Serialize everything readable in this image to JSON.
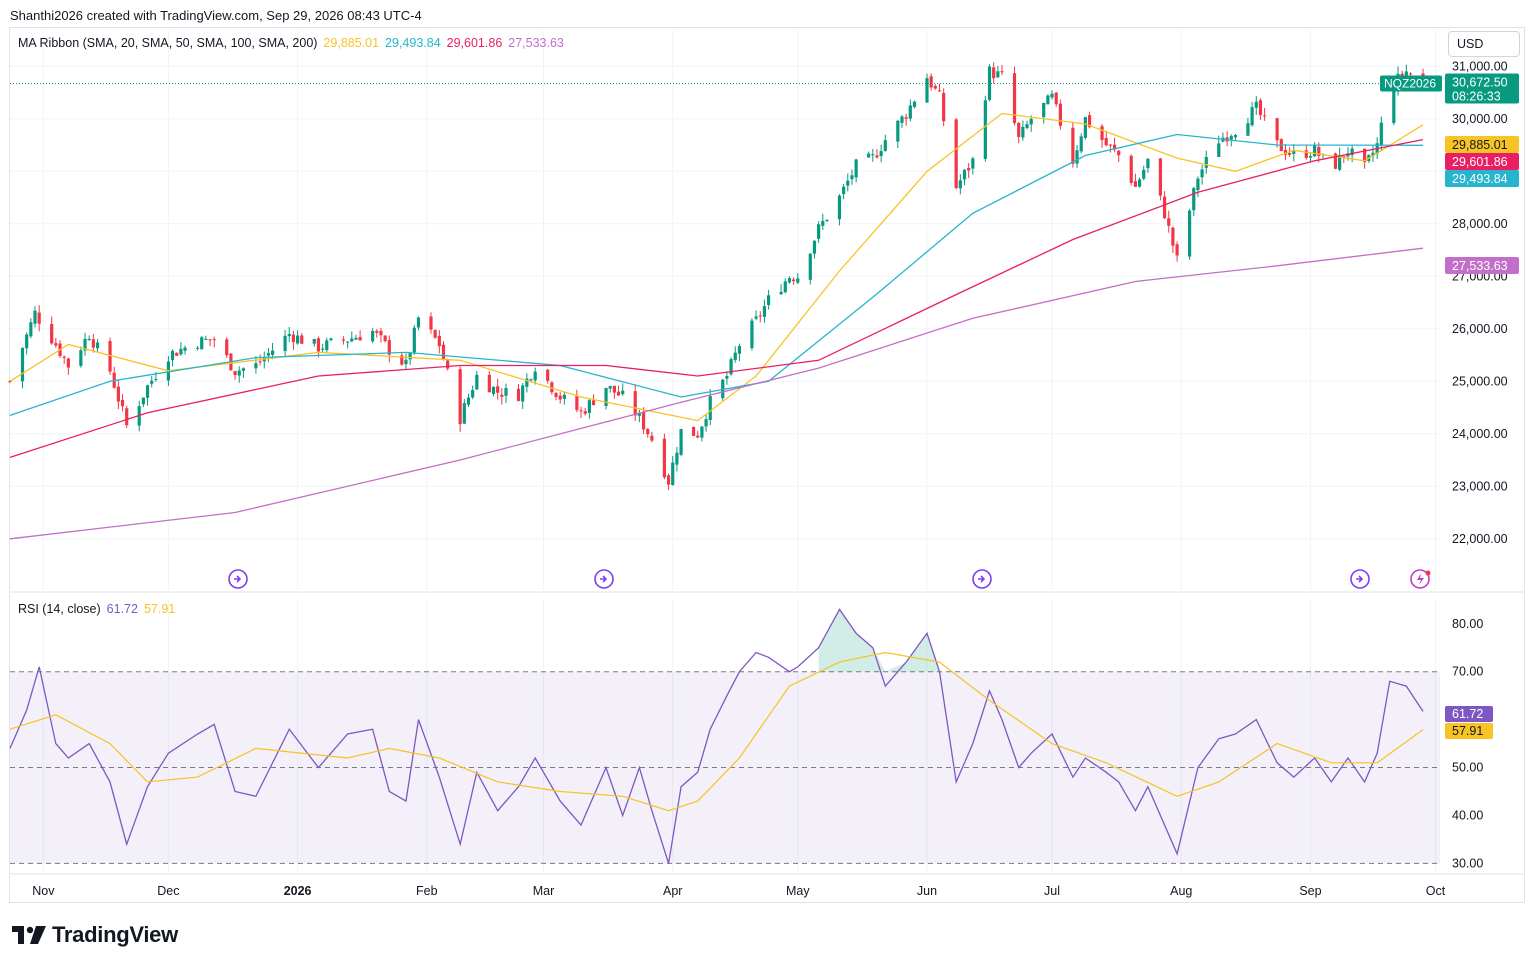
{
  "header": {
    "credit": "Shanthi2026 created with TradingView.com, Sep 29, 2026 08:43 UTC-4"
  },
  "brand": {
    "name": "TradingView",
    "icon": "tradingview-logo-icon"
  },
  "currency_button": "USD",
  "symbol": {
    "ticker": "NQZ2026",
    "last_price": "30,672.50",
    "countdown": "08:26:33",
    "up_color": "#089981",
    "down_color": "#f23645"
  },
  "ma_ribbon": {
    "label": "MA Ribbon (SMA, 20, SMA, 50, SMA, 100, SMA, 200)",
    "lines": [
      {
        "value": "29,885.01",
        "color": "#f7c325"
      },
      {
        "value": "29,493.84",
        "color": "#26b5cc"
      },
      {
        "value": "29,601.86",
        "color": "#e91e63"
      },
      {
        "value": "27,533.63",
        "color": "#c36fc9"
      }
    ]
  },
  "rsi": {
    "label": "RSI (14, close)",
    "value": "61.72",
    "ma_value": "57.91",
    "color": "#7e57c2",
    "ma_color": "#f7c325"
  },
  "chart_data": [
    {
      "type": "candlestick",
      "title": "",
      "x_axis_ticks": [
        "Nov",
        "Dec",
        "2026",
        "Feb",
        "Mar",
        "Apr",
        "May",
        "Jun",
        "Jul",
        "Aug",
        "Sep",
        "Oct"
      ],
      "y_axis_ticks": [
        {
          "v": 31000,
          "label": "31,000.00"
        },
        {
          "v": 30000,
          "label": "30,000.00"
        },
        {
          "v": 29000,
          "label": "29,000.00"
        },
        {
          "v": 28000,
          "label": "28,000.00"
        },
        {
          "v": 27000,
          "label": "27,000.00"
        },
        {
          "v": 26000,
          "label": "26,000.00"
        },
        {
          "v": 25000,
          "label": "25,000.00"
        },
        {
          "v": 24000,
          "label": "24,000.00"
        },
        {
          "v": 23000,
          "label": "23,000.00"
        },
        {
          "v": 22000,
          "label": "22,000.00"
        }
      ],
      "ylim": [
        21500,
        31500
      ],
      "price_path": [
        [
          "2025-10-24",
          25000
        ],
        [
          "2025-10-30",
          26300
        ],
        [
          "2025-11-04",
          25700
        ],
        [
          "2025-11-07",
          25300
        ],
        [
          "2025-11-12",
          25900
        ],
        [
          "2025-11-17",
          25200
        ],
        [
          "2025-11-21",
          24150
        ],
        [
          "2025-11-26",
          24900
        ],
        [
          "2025-12-01",
          25500
        ],
        [
          "2025-12-08",
          25750
        ],
        [
          "2025-12-12",
          25800
        ],
        [
          "2025-12-17",
          25200
        ],
        [
          "2025-12-22",
          25300
        ],
        [
          "2025-12-30",
          25900
        ],
        [
          "2026-01-06",
          25650
        ],
        [
          "2026-01-13",
          25800
        ],
        [
          "2026-01-19",
          25950
        ],
        [
          "2026-01-23",
          25600
        ],
        [
          "2026-01-27",
          25300
        ],
        [
          "2026-01-30",
          26200
        ],
        [
          "2026-02-04",
          25700
        ],
        [
          "2026-02-09",
          24300
        ],
        [
          "2026-02-13",
          25100
        ],
        [
          "2026-02-18",
          24800
        ],
        [
          "2026-02-23",
          24750
        ],
        [
          "2026-02-27",
          25300
        ],
        [
          "2026-03-05",
          24700
        ],
        [
          "2026-03-10",
          24400
        ],
        [
          "2026-03-16",
          24900
        ],
        [
          "2026-03-20",
          24700
        ],
        [
          "2026-03-24",
          24300
        ],
        [
          "2026-03-27",
          23900
        ],
        [
          "2026-03-31",
          23100
        ],
        [
          "2026-04-03",
          24050
        ],
        [
          "2026-04-07",
          24000
        ],
        [
          "2026-04-10",
          24600
        ],
        [
          "2026-04-14",
          25100
        ],
        [
          "2026-04-17",
          25700
        ],
        [
          "2026-04-21",
          26150
        ],
        [
          "2026-04-24",
          26550
        ],
        [
          "2026-04-29",
          27000
        ],
        [
          "2026-05-01",
          27000
        ],
        [
          "2026-05-06",
          27900
        ],
        [
          "2026-05-11",
          28500
        ],
        [
          "2026-05-15",
          29100
        ],
        [
          "2026-05-19",
          29250
        ],
        [
          "2026-05-22",
          29600
        ],
        [
          "2026-05-27",
          30100
        ],
        [
          "2026-06-01",
          30800
        ],
        [
          "2026-06-04",
          30400
        ],
        [
          "2026-06-08",
          28700
        ],
        [
          "2026-06-12",
          29200
        ],
        [
          "2026-06-16",
          30900
        ],
        [
          "2026-06-19",
          30800
        ],
        [
          "2026-06-23",
          29600
        ],
        [
          "2026-06-26",
          30000
        ],
        [
          "2026-07-01",
          30400
        ],
        [
          "2026-07-06",
          29200
        ],
        [
          "2026-07-09",
          30000
        ],
        [
          "2026-07-14",
          29500
        ],
        [
          "2026-07-17",
          29300
        ],
        [
          "2026-07-21",
          28700
        ],
        [
          "2026-07-24",
          29200
        ],
        [
          "2026-07-28",
          28200
        ],
        [
          "2026-07-31",
          27300
        ],
        [
          "2026-08-05",
          28900
        ],
        [
          "2026-08-10",
          29600
        ],
        [
          "2026-08-14",
          29800
        ],
        [
          "2026-08-19",
          30200
        ],
        [
          "2026-08-24",
          29500
        ],
        [
          "2026-08-28",
          29300
        ],
        [
          "2026-09-02",
          29400
        ],
        [
          "2026-09-06",
          29050
        ],
        [
          "2026-09-10",
          29400
        ],
        [
          "2026-09-14",
          29050
        ],
        [
          "2026-09-17",
          29500
        ],
        [
          "2026-09-20",
          30600
        ],
        [
          "2026-09-24",
          30900
        ],
        [
          "2026-09-28",
          30700
        ]
      ],
      "ma_ribbon_paths": {
        "sma20": [
          [
            "2025-10-24",
            25000
          ],
          [
            "2025-11-07",
            25700
          ],
          [
            "2025-12-01",
            25200
          ],
          [
            "2026-01-06",
            25550
          ],
          [
            "2026-02-09",
            25400
          ],
          [
            "2026-03-10",
            24700
          ],
          [
            "2026-04-07",
            24250
          ],
          [
            "2026-04-21",
            25100
          ],
          [
            "2026-05-11",
            27100
          ],
          [
            "2026-06-01",
            29000
          ],
          [
            "2026-06-19",
            30100
          ],
          [
            "2026-07-09",
            29900
          ],
          [
            "2026-07-31",
            29250
          ],
          [
            "2026-08-14",
            29000
          ],
          [
            "2026-08-28",
            29400
          ],
          [
            "2026-09-14",
            29200
          ],
          [
            "2026-09-28",
            29885
          ]
        ],
        "sma50": [
          [
            "2025-10-24",
            24350
          ],
          [
            "2025-11-17",
            25000
          ],
          [
            "2025-12-22",
            25450
          ],
          [
            "2026-01-27",
            25550
          ],
          [
            "2026-03-05",
            25300
          ],
          [
            "2026-04-03",
            24700
          ],
          [
            "2026-04-24",
            25000
          ],
          [
            "2026-05-19",
            26600
          ],
          [
            "2026-06-12",
            28200
          ],
          [
            "2026-07-09",
            29300
          ],
          [
            "2026-07-31",
            29700
          ],
          [
            "2026-08-24",
            29500
          ],
          [
            "2026-09-28",
            29494
          ]
        ],
        "sma100": [
          [
            "2025-10-24",
            23550
          ],
          [
            "2025-11-26",
            24400
          ],
          [
            "2026-01-06",
            25100
          ],
          [
            "2026-02-09",
            25300
          ],
          [
            "2026-03-16",
            25300
          ],
          [
            "2026-04-07",
            25100
          ],
          [
            "2026-05-06",
            25400
          ],
          [
            "2026-06-04",
            26500
          ],
          [
            "2026-07-06",
            27700
          ],
          [
            "2026-08-05",
            28600
          ],
          [
            "2026-09-02",
            29200
          ],
          [
            "2026-09-28",
            29602
          ]
        ],
        "sma200": [
          [
            "2025-10-24",
            22000
          ],
          [
            "2025-12-17",
            22500
          ],
          [
            "2026-02-09",
            23500
          ],
          [
            "2026-04-03",
            24600
          ],
          [
            "2026-05-06",
            25250
          ],
          [
            "2026-06-12",
            26200
          ],
          [
            "2026-07-21",
            26900
          ],
          [
            "2026-08-24",
            27200
          ],
          [
            "2026-09-28",
            27534
          ]
        ]
      }
    },
    {
      "type": "line",
      "title": "",
      "y_axis_ticks": [
        {
          "v": 80,
          "label": "80.00"
        },
        {
          "v": 70,
          "label": "70.00"
        },
        {
          "v": 50,
          "label": "50.00"
        },
        {
          "v": 40,
          "label": "40.00"
        },
        {
          "v": 30,
          "label": "30.00"
        }
      ],
      "bands": {
        "upper": 70,
        "middle": 50,
        "lower": 30
      },
      "ylim": [
        28,
        86
      ],
      "series": [
        {
          "points": [
            [
              "2025-10-24",
              54
            ],
            [
              "2025-10-28",
              62
            ],
            [
              "2025-10-31",
              71
            ],
            [
              "2025-11-04",
              55
            ],
            [
              "2025-11-07",
              52
            ],
            [
              "2025-11-12",
              55
            ],
            [
              "2025-11-17",
              47
            ],
            [
              "2025-11-21",
              34
            ],
            [
              "2025-11-26",
              46
            ],
            [
              "2025-12-01",
              53
            ],
            [
              "2025-12-08",
              57
            ],
            [
              "2025-12-12",
              59
            ],
            [
              "2025-12-17",
              45
            ],
            [
              "2025-12-22",
              44
            ],
            [
              "2025-12-30",
              58
            ],
            [
              "2026-01-06",
              50
            ],
            [
              "2026-01-13",
              57
            ],
            [
              "2026-01-19",
              58
            ],
            [
              "2026-01-23",
              45
            ],
            [
              "2026-01-27",
              43
            ],
            [
              "2026-01-30",
              60
            ],
            [
              "2026-02-04",
              48
            ],
            [
              "2026-02-09",
              34
            ],
            [
              "2026-02-13",
              49
            ],
            [
              "2026-02-18",
              41
            ],
            [
              "2026-02-23",
              46
            ],
            [
              "2026-02-27",
              52
            ],
            [
              "2026-03-05",
              43
            ],
            [
              "2026-03-10",
              38
            ],
            [
              "2026-03-16",
              50
            ],
            [
              "2026-03-20",
              40
            ],
            [
              "2026-03-24",
              50
            ],
            [
              "2026-03-27",
              41
            ],
            [
              "2026-03-31",
              30
            ],
            [
              "2026-04-03",
              46
            ],
            [
              "2026-04-07",
              49
            ],
            [
              "2026-04-10",
              58
            ],
            [
              "2026-04-14",
              65
            ],
            [
              "2026-04-17",
              70
            ],
            [
              "2026-04-21",
              74
            ],
            [
              "2026-04-24",
              73
            ],
            [
              "2026-04-29",
              70
            ],
            [
              "2026-05-01",
              71
            ],
            [
              "2026-05-06",
              75
            ],
            [
              "2026-05-11",
              83
            ],
            [
              "2026-05-15",
              78
            ],
            [
              "2026-05-19",
              75
            ],
            [
              "2026-05-22",
              67
            ],
            [
              "2026-05-27",
              72
            ],
            [
              "2026-06-01",
              78
            ],
            [
              "2026-06-04",
              70
            ],
            [
              "2026-06-08",
              47
            ],
            [
              "2026-06-12",
              55
            ],
            [
              "2026-06-16",
              66
            ],
            [
              "2026-06-19",
              60
            ],
            [
              "2026-06-23",
              50
            ],
            [
              "2026-06-26",
              53
            ],
            [
              "2026-07-01",
              57
            ],
            [
              "2026-07-06",
              48
            ],
            [
              "2026-07-09",
              52
            ],
            [
              "2026-07-14",
              49
            ],
            [
              "2026-07-17",
              47
            ],
            [
              "2026-07-21",
              41
            ],
            [
              "2026-07-24",
              46
            ],
            [
              "2026-07-28",
              38
            ],
            [
              "2026-07-31",
              32
            ],
            [
              "2026-08-05",
              50
            ],
            [
              "2026-08-10",
              56
            ],
            [
              "2026-08-14",
              57
            ],
            [
              "2026-08-19",
              60
            ],
            [
              "2026-08-24",
              51
            ],
            [
              "2026-08-28",
              48
            ],
            [
              "2026-09-02",
              52
            ],
            [
              "2026-09-06",
              47
            ],
            [
              "2026-09-10",
              52
            ],
            [
              "2026-09-14",
              47
            ],
            [
              "2026-09-17",
              53
            ],
            [
              "2026-09-20",
              68
            ],
            [
              "2026-09-24",
              67
            ],
            [
              "2026-09-28",
              61.72
            ]
          ]
        },
        {
          "points": [
            [
              "2025-10-24",
              58
            ],
            [
              "2025-11-04",
              61
            ],
            [
              "2025-11-17",
              55
            ],
            [
              "2025-11-26",
              47
            ],
            [
              "2025-12-08",
              48
            ],
            [
              "2025-12-22",
              54
            ],
            [
              "2026-01-13",
              52
            ],
            [
              "2026-01-23",
              54
            ],
            [
              "2026-02-04",
              52
            ],
            [
              "2026-02-18",
              47
            ],
            [
              "2026-03-05",
              45
            ],
            [
              "2026-03-20",
              44
            ],
            [
              "2026-03-31",
              41
            ],
            [
              "2026-04-07",
              43
            ],
            [
              "2026-04-17",
              52
            ],
            [
              "2026-04-29",
              67
            ],
            [
              "2026-05-11",
              72
            ],
            [
              "2026-05-22",
              74
            ],
            [
              "2026-06-04",
              72
            ],
            [
              "2026-06-16",
              64
            ],
            [
              "2026-07-01",
              55
            ],
            [
              "2026-07-14",
              51
            ],
            [
              "2026-07-31",
              44
            ],
            [
              "2026-08-10",
              47
            ],
            [
              "2026-08-24",
              55
            ],
            [
              "2026-09-06",
              51
            ],
            [
              "2026-09-17",
              51
            ],
            [
              "2026-09-28",
              57.91
            ]
          ]
        }
      ]
    }
  ]
}
